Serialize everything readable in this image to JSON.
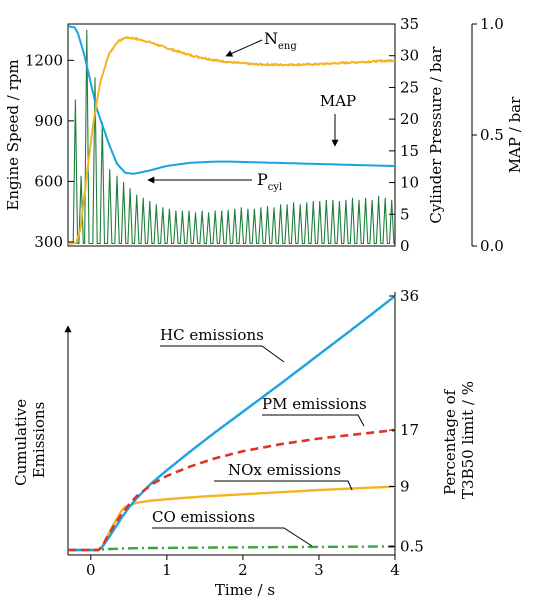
{
  "colors": {
    "neng": "#f5b324",
    "map": "#1aa3df",
    "pcyl": "#1e7f3a",
    "hc": "#1aa3df",
    "pm": "#e03327",
    "nox": "#f5b324",
    "co": "#3aa33a",
    "axis": "#000000"
  },
  "chart_data": [
    {
      "type": "line",
      "panel": "top",
      "xlim": [
        0,
        4
      ],
      "axes": {
        "left": {
          "label": "Engine Speed / rpm",
          "ticks": [
            "300",
            "600",
            "900",
            "1200"
          ],
          "tick_values": [
            300,
            600,
            900,
            1200
          ],
          "ylim": [
            280,
            1380
          ]
        },
        "right1": {
          "label": "Cylinder Pressure / bar",
          "ticks": [
            "0",
            "5",
            "10",
            "15",
            "20",
            "25",
            "30",
            "35"
          ],
          "tick_values": [
            0,
            5,
            10,
            15,
            20,
            25,
            30,
            35
          ],
          "ylim": [
            0,
            35
          ]
        },
        "right2": {
          "label": "MAP / bar",
          "ticks": [
            "0.0",
            "0.5",
            "1.0"
          ],
          "tick_values": [
            0,
            0.5,
            1.0
          ],
          "ylim": [
            0,
            1.0
          ]
        }
      },
      "series": [
        {
          "name": "Neng",
          "axis": "left",
          "x": [
            0,
            0.1,
            0.15,
            0.2,
            0.25,
            0.3,
            0.35,
            0.4,
            0.5,
            0.6,
            0.7,
            0.8,
            1.0,
            1.2,
            1.5,
            1.8,
            2.0,
            2.3,
            2.6,
            3.0,
            3.5,
            4.0
          ],
          "y": [
            290,
            295,
            360,
            530,
            700,
            860,
            990,
            1100,
            1230,
            1290,
            1312,
            1310,
            1290,
            1262,
            1225,
            1200,
            1190,
            1180,
            1178,
            1180,
            1190,
            1200
          ]
        },
        {
          "name": "MAP",
          "axis": "right2",
          "x": [
            0,
            0.08,
            0.12,
            0.2,
            0.25,
            0.35,
            0.5,
            0.6,
            0.7,
            0.8,
            1.0,
            1.2,
            1.5,
            1.8,
            2.0,
            2.5,
            3.0,
            3.5,
            4.0
          ],
          "y": [
            0.99,
            0.985,
            0.96,
            0.86,
            0.78,
            0.62,
            0.46,
            0.37,
            0.33,
            0.325,
            0.34,
            0.36,
            0.375,
            0.38,
            0.38,
            0.375,
            0.37,
            0.365,
            0.36
          ]
        },
        {
          "name": "Pcyl",
          "axis": "right1",
          "baseline": 0.4,
          "peaks_x": [
            0.09,
            0.16,
            0.23,
            0.33,
            0.42,
            0.51,
            0.6,
            0.68,
            0.76,
            0.84,
            0.92,
            1.0,
            1.08,
            1.16,
            1.24,
            1.32,
            1.4,
            1.48,
            1.56,
            1.64,
            1.72,
            1.8,
            1.88,
            1.96,
            2.04,
            2.12,
            2.2,
            2.28,
            2.36,
            2.44,
            2.52,
            2.6,
            2.68,
            2.76,
            2.84,
            2.92,
            3.0,
            3.08,
            3.16,
            3.24,
            3.32,
            3.4,
            3.48,
            3.56,
            3.64,
            3.72,
            3.8,
            3.88,
            3.96
          ],
          "peaks_y": [
            23,
            11,
            34,
            26.5,
            19.5,
            12,
            11,
            10,
            9,
            8,
            7.5,
            7,
            6.5,
            6,
            5.8,
            5.5,
            5.5,
            5.5,
            5.2,
            5.5,
            5.2,
            5.5,
            5.5,
            5.6,
            5.8,
            6,
            5.8,
            5.8,
            6,
            6.2,
            6,
            6.5,
            6.5,
            6.8,
            6.5,
            6.8,
            7,
            7,
            7.2,
            7.2,
            7,
            7.2,
            7.5,
            7.2,
            7.5,
            7.2,
            7.8,
            7.5,
            7.2
          ]
        }
      ],
      "annotations": {
        "neng": {
          "main": "N",
          "sub": "eng"
        },
        "map": {
          "text": "MAP"
        },
        "pcyl": {
          "main": "P",
          "sub": "cyl"
        }
      }
    },
    {
      "type": "line",
      "panel": "bottom",
      "xlabel": "Time / s",
      "xlim": [
        -0.3,
        4
      ],
      "x_ticks": [
        "0",
        "1",
        "2",
        "3",
        "4"
      ],
      "x_tick_values": [
        0,
        1,
        2,
        3,
        4
      ],
      "ylabel_lines": [
        "Cumulative",
        "Emissions"
      ],
      "right_label_lines": [
        "Percentage of",
        "T3B50 limit / %"
      ],
      "right_ticks": [
        "36",
        "17",
        "9",
        "0.5"
      ],
      "ylim": [
        0,
        36
      ],
      "series": [
        {
          "name": "HC emissions",
          "style": "solid",
          "x": [
            -0.3,
            0.1,
            0.15,
            0.2,
            0.3,
            0.4,
            0.5,
            0.6,
            0.8,
            1.0,
            1.3,
            1.6,
            2.0,
            2.5,
            3.0,
            3.5,
            4.0
          ],
          "y": [
            0,
            0,
            0.4,
            1.2,
            2.8,
            4.5,
            6.0,
            7.3,
            9.5,
            11.3,
            13.9,
            16.4,
            19.6,
            23.6,
            27.7,
            31.8,
            36
          ]
        },
        {
          "name": "PM emissions",
          "style": "dashed",
          "x": [
            -0.3,
            0.1,
            0.15,
            0.2,
            0.3,
            0.4,
            0.5,
            0.6,
            0.8,
            1.0,
            1.3,
            1.6,
            2.0,
            2.5,
            3.0,
            3.5,
            4.0
          ],
          "y": [
            0,
            0,
            0.5,
            1.5,
            3.4,
            5.0,
            6.4,
            7.6,
            9.3,
            10.5,
            11.8,
            12.9,
            14.0,
            15.0,
            15.8,
            16.4,
            17
          ]
        },
        {
          "name": "NOx emissions",
          "style": "solid",
          "x": [
            -0.3,
            0.1,
            0.15,
            0.2,
            0.3,
            0.4,
            0.45,
            0.6,
            0.8,
            1.0,
            1.5,
            2.0,
            2.5,
            3.0,
            3.5,
            4.0
          ],
          "y": [
            0,
            0,
            0.5,
            1.6,
            3.6,
            5.5,
            6.1,
            6.7,
            7.0,
            7.2,
            7.6,
            7.9,
            8.2,
            8.5,
            8.75,
            9
          ]
        },
        {
          "name": "CO emissions",
          "style": "dashdot",
          "x": [
            -0.3,
            0.1,
            0.2,
            0.4,
            0.6,
            1.0,
            1.5,
            2.0,
            3.0,
            4.0
          ],
          "y": [
            0,
            0,
            0.12,
            0.2,
            0.26,
            0.3,
            0.34,
            0.38,
            0.44,
            0.5
          ]
        }
      ]
    }
  ]
}
